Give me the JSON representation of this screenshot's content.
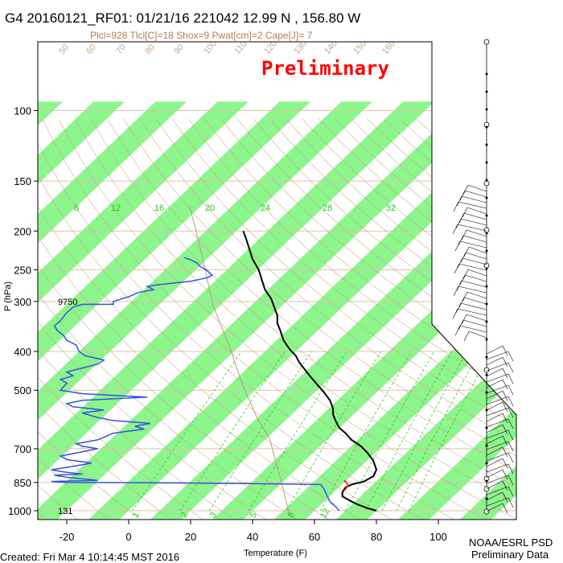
{
  "title": "G4 20160121_RF01: 01/21/16 221042  12.99 N , 156.80 W",
  "subtitle": "Plcl=928 Tlcl[C]=18 Shox=9 Pwat[cm]=2 Cape[J]= 7",
  "watermark": "Preliminary",
  "footer_left": "Created: Fri Mar  4 10:14:45 MST 2016",
  "footer_right_1": "NOAA/ESRL PSD",
  "footer_right_2": "Preliminary Data",
  "colors": {
    "band": "#8cf58c",
    "temp": "#000000",
    "dew": "#3355dd",
    "dryadiabat": "#c8a88a",
    "mixing": "#22cc22",
    "parcel": "#b89a80"
  },
  "chart_data": {
    "type": "line",
    "xlabel": "Temperature (F)",
    "ylabel": "P (hPa)",
    "xlim": [
      -30,
      110
    ],
    "ylim": [
      1030,
      100
    ],
    "y_scale": "log",
    "x_ticks": [
      -20,
      0,
      20,
      40,
      60,
      80,
      100
    ],
    "y_ticks": [
      100,
      150,
      200,
      250,
      300,
      400,
      500,
      700,
      850,
      1000
    ],
    "mixing_ratio_labels": [
      "8",
      "12",
      "16",
      "20",
      "24",
      "28",
      "32"
    ],
    "mixing_ratio_bottom_labels": [
      "1",
      "2",
      "3",
      "5",
      "8",
      "12"
    ],
    "dry_adiabat_labels": [
      "50",
      "60",
      "70",
      "80",
      "90",
      "100",
      "110",
      "120",
      "130",
      "140",
      "150",
      "160"
    ],
    "height_labels": [
      {
        "p": 300,
        "text": "9750"
      },
      {
        "p": 1000,
        "text": "131"
      }
    ],
    "series": [
      {
        "values_desc": "temperature",
        "points": [
          [
            80,
            1000
          ],
          [
            77,
            985
          ],
          [
            74,
            965
          ],
          [
            71,
            940
          ],
          [
            69,
            920
          ],
          [
            69,
            900
          ],
          [
            70,
            875
          ],
          [
            72,
            860
          ],
          [
            76,
            845
          ],
          [
            79,
            820
          ],
          [
            80,
            790
          ],
          [
            79,
            750
          ],
          [
            77,
            715
          ],
          [
            75,
            690
          ],
          [
            72,
            665
          ],
          [
            70,
            640
          ],
          [
            68,
            620
          ],
          [
            67,
            600
          ],
          [
            66,
            575
          ],
          [
            66,
            555
          ],
          [
            65,
            530
          ],
          [
            63,
            505
          ],
          [
            61,
            485
          ],
          [
            59,
            465
          ],
          [
            57,
            445
          ],
          [
            55,
            425
          ],
          [
            54,
            410
          ],
          [
            52,
            395
          ],
          [
            50,
            375
          ],
          [
            49,
            355
          ],
          [
            48,
            340
          ],
          [
            48,
            325
          ],
          [
            47,
            310
          ],
          [
            46,
            295
          ],
          [
            44,
            280
          ],
          [
            43,
            265
          ],
          [
            42,
            250
          ],
          [
            40,
            235
          ],
          [
            39,
            222
          ],
          [
            38,
            210
          ],
          [
            37,
            200
          ]
        ]
      },
      {
        "values_desc": "dewpoint",
        "points": [
          [
            68,
            1000
          ],
          [
            67,
            980
          ],
          [
            65,
            950
          ],
          [
            64,
            915
          ],
          [
            63,
            880
          ],
          [
            62,
            860
          ],
          [
            50,
            857
          ],
          [
            38,
            855
          ],
          [
            20,
            853
          ],
          [
            0,
            851
          ],
          [
            -20,
            850
          ],
          [
            -23,
            848
          ],
          [
            -25,
            845
          ],
          [
            -10,
            840
          ],
          [
            -20,
            825
          ],
          [
            -24,
            815
          ],
          [
            -15,
            810
          ],
          [
            -21,
            800
          ],
          [
            -25,
            790
          ],
          [
            -18,
            775
          ],
          [
            -12,
            760
          ],
          [
            -20,
            745
          ],
          [
            -22,
            730
          ],
          [
            -16,
            715
          ],
          [
            -10,
            700
          ],
          [
            -15,
            690
          ],
          [
            -17,
            680
          ],
          [
            -10,
            665
          ],
          [
            -7,
            650
          ],
          [
            -5,
            640
          ],
          [
            5,
            625
          ],
          [
            2,
            615
          ],
          [
            7,
            605
          ],
          [
            -5,
            595
          ],
          [
            -10,
            585
          ],
          [
            -15,
            570
          ],
          [
            -8,
            560
          ],
          [
            -18,
            550
          ],
          [
            -20,
            540
          ],
          [
            -15,
            530
          ],
          [
            6,
            520
          ],
          [
            -5,
            515
          ],
          [
            -15,
            510
          ],
          [
            -22,
            500
          ],
          [
            -20,
            480
          ],
          [
            -22,
            470
          ],
          [
            -18,
            460
          ],
          [
            -20,
            450
          ],
          [
            -15,
            440
          ],
          [
            -10,
            430
          ],
          [
            -8,
            420
          ],
          [
            -14,
            410
          ],
          [
            -16,
            400
          ],
          [
            -17,
            385
          ],
          [
            -20,
            375
          ],
          [
            -21,
            365
          ],
          [
            -23,
            355
          ],
          [
            -24,
            345
          ],
          [
            -22,
            335
          ],
          [
            -20,
            320
          ],
          [
            -18,
            310
          ],
          [
            -15,
            305
          ],
          [
            -5,
            305
          ],
          [
            -5,
            300
          ],
          [
            -2,
            295
          ],
          [
            0,
            292
          ],
          [
            3,
            285
          ],
          [
            8,
            280
          ],
          [
            6,
            275
          ],
          [
            10,
            272
          ],
          [
            20,
            267
          ],
          [
            25,
            262
          ],
          [
            27,
            258
          ],
          [
            25,
            250
          ],
          [
            23,
            245
          ],
          [
            22,
            240
          ],
          [
            20,
            236
          ],
          [
            18,
            233
          ]
        ]
      }
    ]
  }
}
